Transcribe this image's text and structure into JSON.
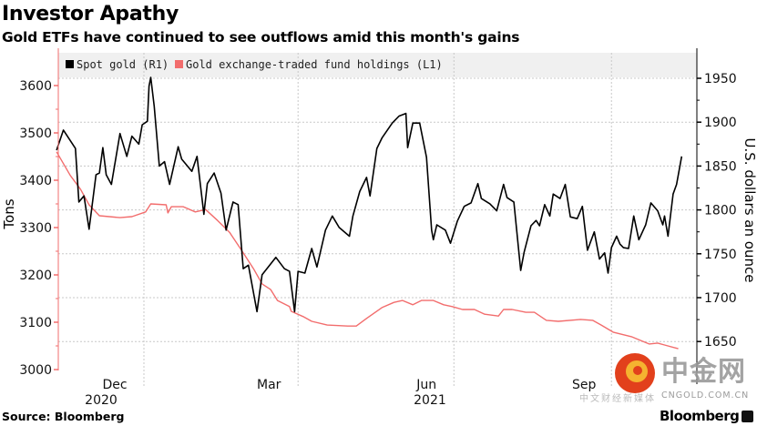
{
  "header": {
    "title": "Investor Apathy",
    "subtitle": "Gold ETFs have continued to see outflows amid this month's gains"
  },
  "footer": {
    "source": "Source: Bloomberg",
    "brand": "Bloomberg"
  },
  "watermark": {
    "name": "中金网",
    "domain": "CNGOLD.COM.CN",
    "tagline": "中文财经新媒体"
  },
  "colors": {
    "gold": "#000000",
    "etf": "#f26d6d",
    "legend_bg": "#f0f0f0",
    "grid": "#c8c8c8"
  },
  "chart_data": {
    "type": "line",
    "title": "Investor Apathy",
    "subtitle": "Gold ETFs have continued to see outflows amid this month's gains",
    "ylabel_left": "Tons",
    "ylabel_right": "U.S. dollars an ounce",
    "ylim_left": [
      3000,
      3620
    ],
    "ylim_right": [
      1620,
      1960
    ],
    "yticks_left": [
      3000,
      3100,
      3200,
      3300,
      3400,
      3500,
      3600
    ],
    "yticks_right": [
      1650,
      1700,
      1750,
      1800,
      1850,
      1900,
      1950
    ],
    "xticks": [
      {
        "label": "Dec",
        "date": "2020-12-15"
      },
      {
        "label": "Mar",
        "date": "2021-03-15"
      },
      {
        "label": "Jun",
        "date": "2021-06-15"
      },
      {
        "label": "Sep",
        "date": "2021-09-15"
      }
    ],
    "year_labels": [
      {
        "label": "2020",
        "date": "2020-12-07"
      },
      {
        "label": "2021",
        "date": "2021-06-17"
      }
    ],
    "grid": true,
    "legend": "top-left",
    "series": [
      {
        "name": "Spot gold (R1)",
        "axis": "right",
        "color": "#000000",
        "points": [
          [
            "2020-11-11",
            1868
          ],
          [
            "2020-11-15",
            1891
          ],
          [
            "2020-11-22",
            1870
          ],
          [
            "2020-11-24",
            1809
          ],
          [
            "2020-11-27",
            1816
          ],
          [
            "2020-11-30",
            1778
          ],
          [
            "2020-12-04",
            1840
          ],
          [
            "2020-12-06",
            1842
          ],
          [
            "2020-12-08",
            1871
          ],
          [
            "2020-12-10",
            1840
          ],
          [
            "2020-12-13",
            1829
          ],
          [
            "2020-12-18",
            1887
          ],
          [
            "2020-12-22",
            1861
          ],
          [
            "2020-12-25",
            1884
          ],
          [
            "2020-12-29",
            1875
          ],
          [
            "2020-12-31",
            1897
          ],
          [
            "2021-01-03",
            1901
          ],
          [
            "2021-01-04",
            1941
          ],
          [
            "2021-01-05",
            1951
          ],
          [
            "2021-01-07",
            1918
          ],
          [
            "2021-01-10",
            1850
          ],
          [
            "2021-01-13",
            1855
          ],
          [
            "2021-01-16",
            1829
          ],
          [
            "2021-01-21",
            1872
          ],
          [
            "2021-01-23",
            1858
          ],
          [
            "2021-01-29",
            1844
          ],
          [
            "2021-02-01",
            1861
          ],
          [
            "2021-02-05",
            1795
          ],
          [
            "2021-02-07",
            1830
          ],
          [
            "2021-02-11",
            1842
          ],
          [
            "2021-02-15",
            1819
          ],
          [
            "2021-02-18",
            1777
          ],
          [
            "2021-02-22",
            1809
          ],
          [
            "2021-02-25",
            1806
          ],
          [
            "2021-02-28",
            1733
          ],
          [
            "2021-03-03",
            1737
          ],
          [
            "2021-03-08",
            1684
          ],
          [
            "2021-03-11",
            1726
          ],
          [
            "2021-03-19",
            1746
          ],
          [
            "2021-03-24",
            1733
          ],
          [
            "2021-03-27",
            1730
          ],
          [
            "2021-03-30",
            1684
          ],
          [
            "2021-04-01",
            1730
          ],
          [
            "2021-04-05",
            1728
          ],
          [
            "2021-04-09",
            1756
          ],
          [
            "2021-04-12",
            1735
          ],
          [
            "2021-04-17",
            1777
          ],
          [
            "2021-04-21",
            1793
          ],
          [
            "2021-04-25",
            1780
          ],
          [
            "2021-05-01",
            1770
          ],
          [
            "2021-05-03",
            1793
          ],
          [
            "2021-05-07",
            1821
          ],
          [
            "2021-05-11",
            1837
          ],
          [
            "2021-05-13",
            1816
          ],
          [
            "2021-05-17",
            1870
          ],
          [
            "2021-05-20",
            1882
          ],
          [
            "2021-05-26",
            1899
          ],
          [
            "2021-05-30",
            1907
          ],
          [
            "2021-06-03",
            1910
          ],
          [
            "2021-06-04",
            1871
          ],
          [
            "2021-06-07",
            1899
          ],
          [
            "2021-06-11",
            1899
          ],
          [
            "2021-06-15",
            1860
          ],
          [
            "2021-06-18",
            1777
          ],
          [
            "2021-06-19",
            1766
          ],
          [
            "2021-06-21",
            1783
          ],
          [
            "2021-06-26",
            1777
          ],
          [
            "2021-06-29",
            1762
          ],
          [
            "2021-07-03",
            1787
          ],
          [
            "2021-07-07",
            1804
          ],
          [
            "2021-07-11",
            1808
          ],
          [
            "2021-07-15",
            1830
          ],
          [
            "2021-07-17",
            1813
          ],
          [
            "2021-07-22",
            1807
          ],
          [
            "2021-07-26",
            1799
          ],
          [
            "2021-07-30",
            1829
          ],
          [
            "2021-08-01",
            1814
          ],
          [
            "2021-08-05",
            1809
          ],
          [
            "2021-08-09",
            1731
          ],
          [
            "2021-08-11",
            1752
          ],
          [
            "2021-08-15",
            1782
          ],
          [
            "2021-08-18",
            1788
          ],
          [
            "2021-08-20",
            1782
          ],
          [
            "2021-08-23",
            1806
          ],
          [
            "2021-08-26",
            1793
          ],
          [
            "2021-08-28",
            1818
          ],
          [
            "2021-09-01",
            1813
          ],
          [
            "2021-09-04",
            1829
          ],
          [
            "2021-09-07",
            1792
          ],
          [
            "2021-09-11",
            1790
          ],
          [
            "2021-09-14",
            1804
          ],
          [
            "2021-09-17",
            1754
          ],
          [
            "2021-09-21",
            1775
          ],
          [
            "2021-09-24",
            1744
          ],
          [
            "2021-09-27",
            1751
          ],
          [
            "2021-09-29",
            1728
          ],
          [
            "2021-10-01",
            1757
          ],
          [
            "2021-10-04",
            1770
          ],
          [
            "2021-10-06",
            1761
          ],
          [
            "2021-10-08",
            1757
          ],
          [
            "2021-10-11",
            1756
          ],
          [
            "2021-10-14",
            1793
          ],
          [
            "2021-10-17",
            1766
          ],
          [
            "2021-10-21",
            1783
          ],
          [
            "2021-10-24",
            1808
          ],
          [
            "2021-10-28",
            1799
          ],
          [
            "2021-10-31",
            1783
          ],
          [
            "2021-11-01",
            1793
          ],
          [
            "2021-11-03",
            1770
          ],
          [
            "2021-11-06",
            1818
          ],
          [
            "2021-11-08",
            1829
          ],
          [
            "2021-11-11",
            1861
          ]
        ]
      },
      {
        "name": "Gold exchange-traded fund holdings (L1)",
        "axis": "left",
        "color": "#f26d6d",
        "points": [
          [
            "2020-11-11",
            3460
          ],
          [
            "2020-11-19",
            3410
          ],
          [
            "2020-11-25",
            3381
          ],
          [
            "2020-11-30",
            3348
          ],
          [
            "2020-12-06",
            3325
          ],
          [
            "2020-12-18",
            3321
          ],
          [
            "2020-12-25",
            3323
          ],
          [
            "2021-01-02",
            3333
          ],
          [
            "2021-01-05",
            3350
          ],
          [
            "2021-01-14",
            3348
          ],
          [
            "2021-01-15",
            3331
          ],
          [
            "2021-01-17",
            3344
          ],
          [
            "2021-01-24",
            3344
          ],
          [
            "2021-01-31",
            3333
          ],
          [
            "2021-02-06",
            3338
          ],
          [
            "2021-02-13",
            3315
          ],
          [
            "2021-02-20",
            3290
          ],
          [
            "2021-02-27",
            3252
          ],
          [
            "2021-03-06",
            3213
          ],
          [
            "2021-03-11",
            3181
          ],
          [
            "2021-03-16",
            3169
          ],
          [
            "2021-03-20",
            3146
          ],
          [
            "2021-03-27",
            3133
          ],
          [
            "2021-03-28",
            3123
          ],
          [
            "2021-04-04",
            3112
          ],
          [
            "2021-04-09",
            3102
          ],
          [
            "2021-04-18",
            3094
          ],
          [
            "2021-04-30",
            3092
          ],
          [
            "2021-05-05",
            3092
          ],
          [
            "2021-05-11",
            3108
          ],
          [
            "2021-05-20",
            3131
          ],
          [
            "2021-05-27",
            3142
          ],
          [
            "2021-06-01",
            3146
          ],
          [
            "2021-06-07",
            3137
          ],
          [
            "2021-06-12",
            3146
          ],
          [
            "2021-06-19",
            3146
          ],
          [
            "2021-06-25",
            3137
          ],
          [
            "2021-06-30",
            3133
          ],
          [
            "2021-07-06",
            3127
          ],
          [
            "2021-07-13",
            3127
          ],
          [
            "2021-07-19",
            3117
          ],
          [
            "2021-07-27",
            3113
          ],
          [
            "2021-07-30",
            3127
          ],
          [
            "2021-08-04",
            3127
          ],
          [
            "2021-08-12",
            3121
          ],
          [
            "2021-08-17",
            3121
          ],
          [
            "2021-08-24",
            3104
          ],
          [
            "2021-08-31",
            3102
          ],
          [
            "2021-09-13",
            3106
          ],
          [
            "2021-09-20",
            3104
          ],
          [
            "2021-09-25",
            3094
          ],
          [
            "2021-10-02",
            3079
          ],
          [
            "2021-10-13",
            3069
          ],
          [
            "2021-10-23",
            3054
          ],
          [
            "2021-10-28",
            3056
          ],
          [
            "2021-11-01",
            3052
          ],
          [
            "2021-11-09",
            3044
          ]
        ]
      }
    ]
  }
}
